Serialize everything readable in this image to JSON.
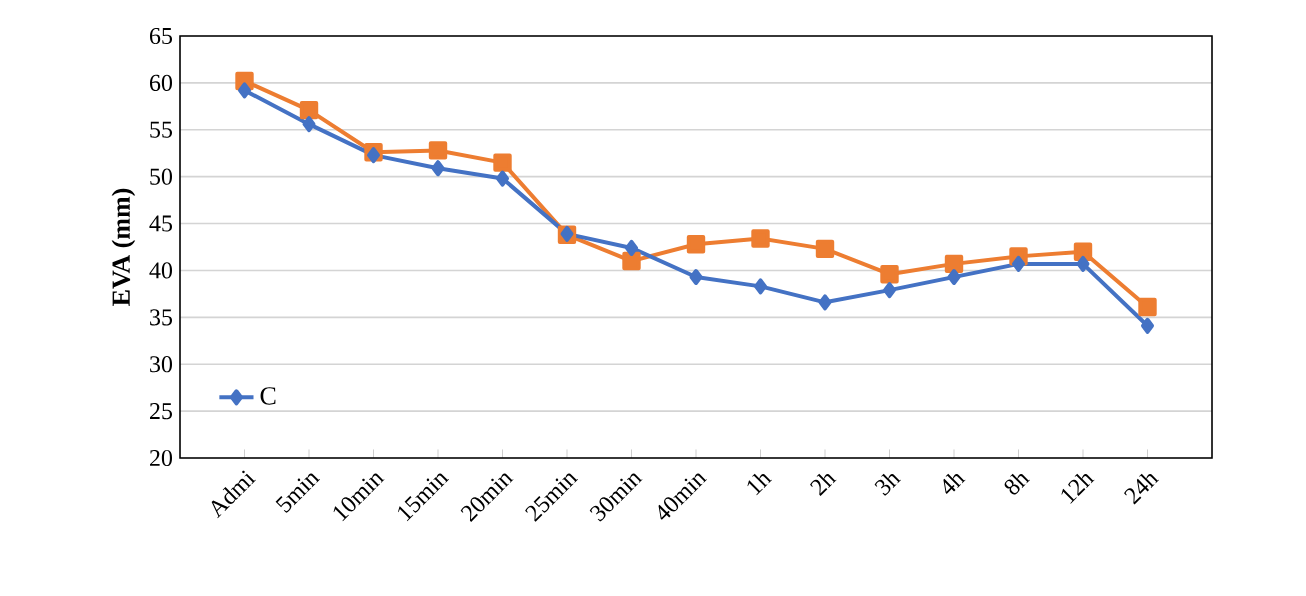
{
  "chart_data": {
    "type": "line",
    "ylabel": "EVA (mm)",
    "categories": [
      "Admi",
      "5min",
      "10min",
      "15min",
      "20min",
      "25min",
      "30min",
      "40min",
      "1h",
      "2h",
      "3h",
      "4h",
      "8h",
      "12h",
      "24h"
    ],
    "series": [
      {
        "name": "C",
        "color": "#4472c4",
        "marker": "diamond",
        "values": [
          59.2,
          55.6,
          52.3,
          50.9,
          49.8,
          43.9,
          42.4,
          39.3,
          38.3,
          36.6,
          37.9,
          39.3,
          40.7,
          40.7,
          34.1
        ]
      },
      {
        "color": "#ed7d31",
        "marker": "square",
        "values": [
          60.2,
          57.1,
          52.6,
          52.8,
          51.5,
          43.8,
          41.0,
          42.8,
          43.4,
          42.3,
          39.6,
          40.7,
          41.5,
          42.0,
          36.1
        ]
      }
    ],
    "ylim": [
      20,
      65
    ],
    "yticks": [
      20,
      25,
      30,
      35,
      40,
      45,
      50,
      55,
      60,
      65
    ],
    "grid": "y",
    "legend": "bottom left",
    "line_style": "solid"
  }
}
